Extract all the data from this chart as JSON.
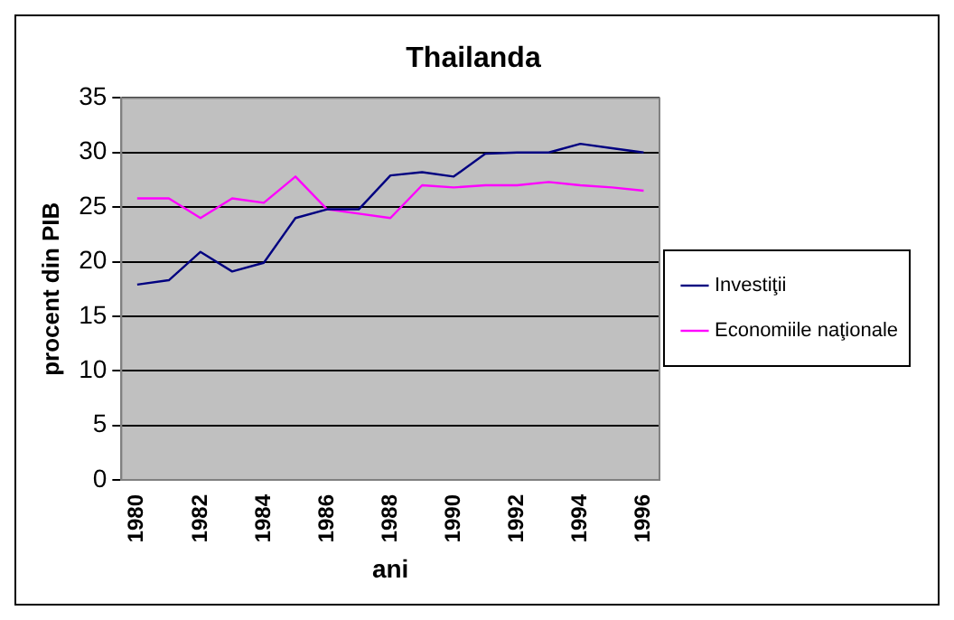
{
  "chart_data": {
    "type": "line",
    "title": "Thailanda",
    "xlabel": "ani",
    "ylabel": "procent din PIB",
    "categories": [
      "1980",
      null,
      "1982",
      null,
      "1984",
      null,
      "1986",
      null,
      "1988",
      null,
      "1990",
      null,
      "1992",
      null,
      "1994",
      null,
      "1996"
    ],
    "series": [
      {
        "name": "Investiţii",
        "color": "#000080",
        "values": [
          17.9,
          18.3,
          20.9,
          19.1,
          19.9,
          24.0,
          24.8,
          24.8,
          27.9,
          28.2,
          27.8,
          29.9,
          30,
          30,
          30.8,
          30.4,
          30
        ]
      },
      {
        "name": "Economiile naţionale",
        "color": "#ff00ff",
        "values": [
          25.8,
          25.8,
          24.0,
          25.8,
          25.4,
          27.8,
          24.8,
          24.4,
          24.0,
          27.0,
          26.8,
          27.0,
          27.0,
          27.3,
          27.0,
          26.8,
          26.5
        ]
      }
    ],
    "ylim": [
      0,
      35
    ],
    "yticks": [
      0,
      5,
      10,
      15,
      20,
      25,
      30,
      35
    ],
    "grid": "y",
    "legend": "right",
    "marker": "none",
    "line_style": "solid"
  }
}
